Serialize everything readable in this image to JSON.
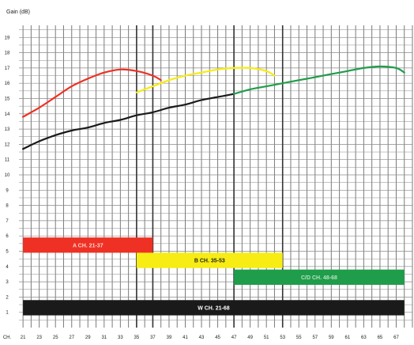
{
  "chart_data": {
    "type": "line",
    "title": "",
    "ylabel": "Gain (dB)",
    "xlabel": "CH.",
    "ylim": [
      0,
      20
    ],
    "xlim": [
      20.5,
      69
    ],
    "x_ticks": [
      21,
      23,
      25,
      27,
      29,
      31,
      33,
      35,
      37,
      39,
      41,
      43,
      45,
      47,
      49,
      51,
      53,
      55,
      57,
      59,
      61,
      63,
      65,
      67
    ],
    "x_tick_labels": [
      "21",
      "23",
      "25",
      "27",
      "29",
      "31",
      "33",
      "35",
      "37",
      "39",
      "41",
      "43",
      "45",
      "47",
      "49",
      "51",
      "53",
      "55",
      "57",
      "59",
      "61",
      "63",
      "65",
      "67"
    ],
    "y_ticks": [
      1,
      2,
      3,
      4,
      5,
      6,
      7,
      8,
      9,
      10,
      11,
      12,
      13,
      14,
      15,
      16,
      17,
      18,
      19
    ],
    "y_tick_labels": [
      "1",
      "2",
      "3",
      "4",
      "5",
      "6",
      "7",
      "8",
      "9",
      "10",
      "11",
      "12",
      "13",
      "14",
      "15",
      "16",
      "17",
      "18",
      "19"
    ],
    "grid": true,
    "series": [
      {
        "name": "A CH. 21-37",
        "color": "#ee3124",
        "x": [
          21,
          23,
          25,
          27,
          29,
          31,
          33,
          35,
          37,
          38
        ],
        "y": [
          13.8,
          14.4,
          15.1,
          15.8,
          16.3,
          16.7,
          16.9,
          16.8,
          16.5,
          16.2
        ]
      },
      {
        "name": "B CH. 35-53",
        "color": "#f7ec13",
        "x": [
          35,
          37,
          39,
          41,
          43,
          45,
          47,
          49,
          51,
          52
        ],
        "y": [
          15.4,
          15.8,
          16.2,
          16.5,
          16.7,
          16.9,
          17.0,
          17.0,
          16.8,
          16.5
        ]
      },
      {
        "name": "W CH. 21-68",
        "color": "#1a1a1a",
        "x": [
          21,
          23,
          25,
          27,
          29,
          31,
          33,
          35,
          37,
          39,
          41,
          43,
          45,
          47
        ],
        "y": [
          11.7,
          12.2,
          12.6,
          12.9,
          13.1,
          13.4,
          13.6,
          13.9,
          14.1,
          14.4,
          14.6,
          14.9,
          15.1,
          15.3
        ]
      },
      {
        "name": "C/D CH. 48-68",
        "color": "#1f9d4a",
        "x": [
          47,
          49,
          51,
          53,
          55,
          57,
          59,
          61,
          63,
          65,
          67,
          68
        ],
        "y": [
          15.3,
          15.6,
          15.8,
          16.0,
          16.2,
          16.4,
          16.6,
          16.8,
          17.0,
          17.1,
          17.0,
          16.7
        ]
      }
    ],
    "bands": [
      {
        "label": "A CH. 21-37",
        "from": 21,
        "to": 37,
        "y_top": 5.9,
        "y_bottom": 4.9,
        "fill": "#ee3124",
        "text": "#fbd5d1"
      },
      {
        "label": "B CH. 35-53",
        "from": 35,
        "to": 53,
        "y_top": 4.9,
        "y_bottom": 3.9,
        "fill": "#f7ec13",
        "text": "#222222"
      },
      {
        "label": "C/D CH. 48-68",
        "from": 47,
        "to": 68,
        "y_top": 3.8,
        "y_bottom": 2.8,
        "fill": "#1f9d4a",
        "text": "#b8e2c2"
      },
      {
        "label": "W CH. 21-68",
        "from": 21,
        "to": 68,
        "y_top": 1.8,
        "y_bottom": 0.8,
        "fill": "#1a1a1a",
        "text": "#ffffff"
      }
    ],
    "band_separators": [
      35,
      37,
      47,
      53
    ]
  }
}
